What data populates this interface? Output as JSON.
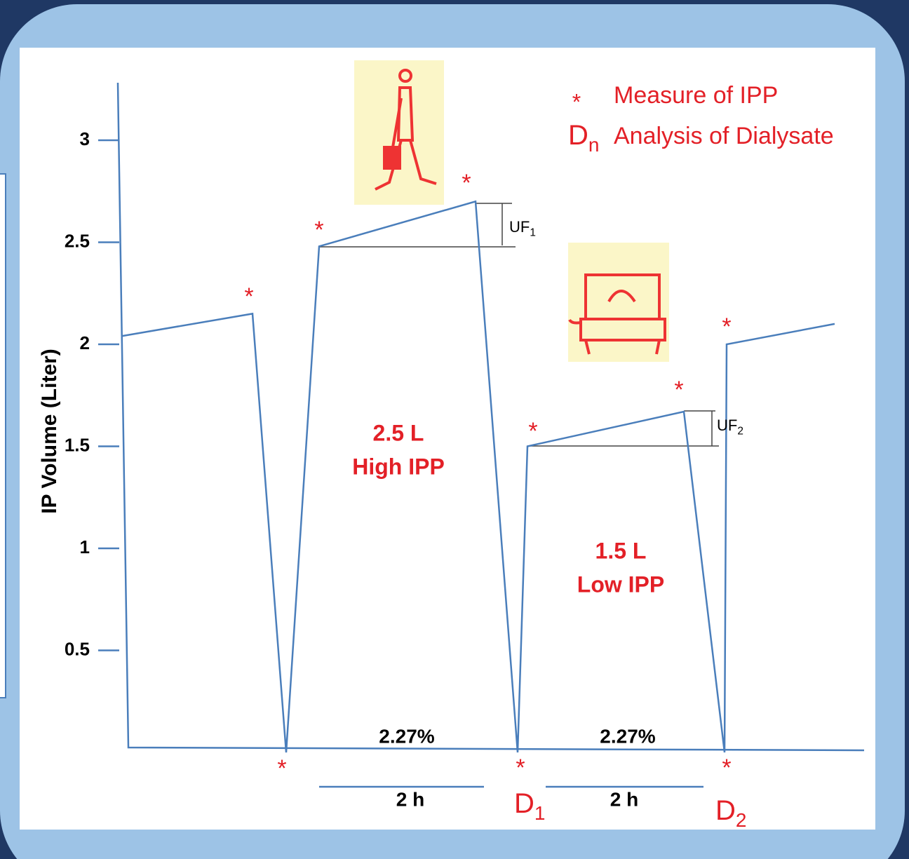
{
  "chart_data": {
    "type": "line",
    "y_label": "IP Volume (Liter)",
    "ylim": [
      0,
      3.3
    ],
    "yticks": [
      0.5,
      1,
      1.5,
      2,
      2.5,
      3
    ],
    "series": [
      {
        "color": "#4a7ebb",
        "values": [
          2.04,
          2.15,
          0,
          2.48,
          2.7,
          0,
          1.5,
          1.67,
          0,
          2.0,
          2.1
        ]
      }
    ],
    "marker": "*",
    "legend": [
      {
        "symbol": "*",
        "text": "Measure of IPP"
      },
      {
        "symbol": {
          "main": "D",
          "sub": "n"
        },
        "text": "Analysis of Dialysate"
      }
    ],
    "dwell_labels": [
      {
        "volume": "2.5 L",
        "pressure": "High IPP"
      },
      {
        "volume": "1.5 L",
        "pressure": "Low IPP"
      }
    ],
    "concentrations": [
      "2.27%",
      "2.27%"
    ],
    "durations": [
      "2 h",
      "2 h"
    ],
    "samples": [
      {
        "main": "D",
        "sub": "1"
      },
      {
        "main": "D",
        "sub": "2"
      }
    ],
    "uf": [
      {
        "main": "UF",
        "sub": "1"
      },
      {
        "main": "UF",
        "sub": "2"
      }
    ]
  }
}
